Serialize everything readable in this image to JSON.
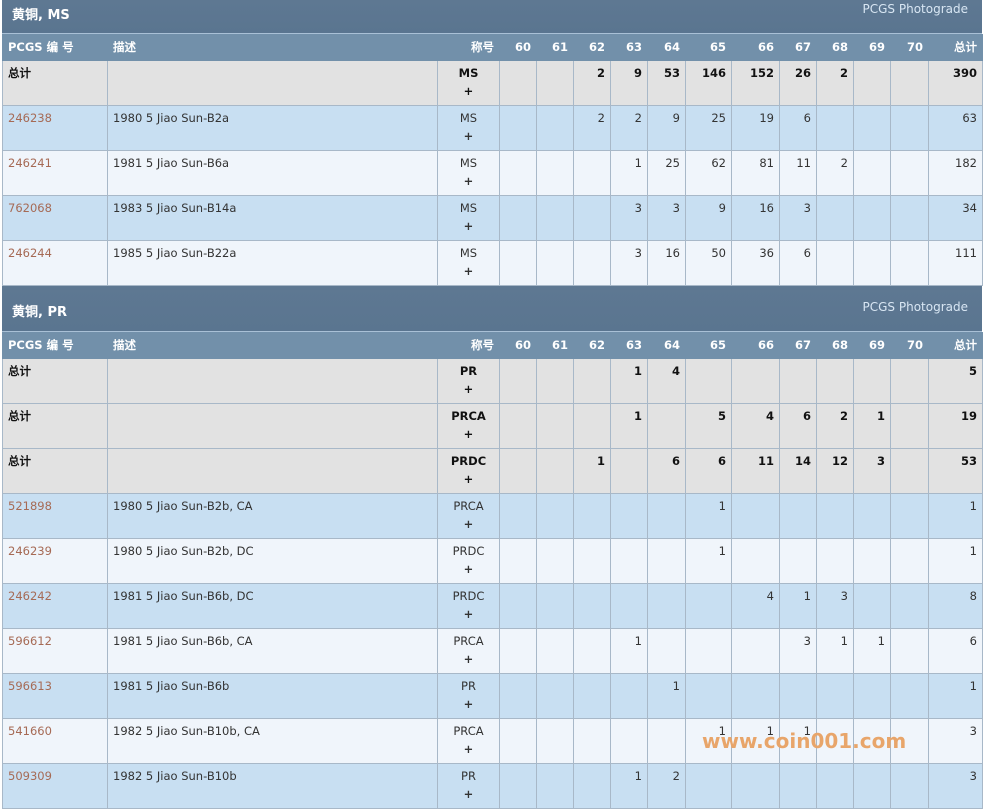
{
  "columns": {
    "pcgs": "PCGS 编 号",
    "desc": "描述",
    "designation": "称号",
    "grades": [
      "60",
      "61",
      "62",
      "63",
      "64",
      "65",
      "66",
      "67",
      "68",
      "69",
      "70"
    ],
    "total": "总计"
  },
  "plus": "+",
  "sections": [
    {
      "title": "黄铜, MS",
      "photograde": "PCGS Photograde",
      "rows": [
        {
          "type": "total",
          "pcgs": "总计",
          "desc": "",
          "designation": "MS",
          "counts": [
            null,
            null,
            2,
            9,
            53,
            146,
            152,
            26,
            2,
            null,
            null
          ],
          "total": "390"
        },
        {
          "type": "item",
          "pcgs": "246238",
          "desc": "1980 5 Jiao Sun-B2a",
          "designation": "MS",
          "counts": [
            null,
            null,
            2,
            2,
            9,
            25,
            19,
            6,
            null,
            null,
            null
          ],
          "total": "63"
        },
        {
          "type": "item",
          "pcgs": "246241",
          "desc": "1981 5 Jiao Sun-B6a",
          "designation": "MS",
          "counts": [
            null,
            null,
            null,
            1,
            25,
            62,
            81,
            11,
            2,
            null,
            null
          ],
          "total": "182"
        },
        {
          "type": "item",
          "pcgs": "762068",
          "desc": "1983 5 Jiao Sun-B14a",
          "designation": "MS",
          "counts": [
            null,
            null,
            null,
            3,
            3,
            9,
            16,
            3,
            null,
            null,
            null
          ],
          "total": "34"
        },
        {
          "type": "item",
          "pcgs": "246244",
          "desc": "1985 5 Jiao Sun-B22a",
          "designation": "MS",
          "counts": [
            null,
            null,
            null,
            3,
            16,
            50,
            36,
            6,
            null,
            null,
            null
          ],
          "total": "111"
        }
      ]
    },
    {
      "title": "黄铜, PR",
      "photograde": "PCGS Photograde",
      "rows": [
        {
          "type": "total",
          "pcgs": "总计",
          "desc": "",
          "designation": "PR",
          "counts": [
            null,
            null,
            null,
            1,
            4,
            null,
            null,
            null,
            null,
            null,
            null
          ],
          "total": "5"
        },
        {
          "type": "total",
          "pcgs": "总计",
          "desc": "",
          "designation": "PRCA",
          "counts": [
            null,
            null,
            null,
            1,
            null,
            5,
            4,
            6,
            2,
            1,
            null
          ],
          "total": "19"
        },
        {
          "type": "total",
          "pcgs": "总计",
          "desc": "",
          "designation": "PRDC",
          "counts": [
            null,
            null,
            1,
            null,
            6,
            6,
            11,
            14,
            12,
            3,
            null
          ],
          "total": "53"
        },
        {
          "type": "item",
          "pcgs": "521898",
          "desc": "1980 5 Jiao Sun-B2b, CA",
          "designation": "PRCA",
          "counts": [
            null,
            null,
            null,
            null,
            null,
            1,
            null,
            null,
            null,
            null,
            null
          ],
          "total": "1"
        },
        {
          "type": "item",
          "pcgs": "246239",
          "desc": "1980 5 Jiao Sun-B2b, DC",
          "designation": "PRDC",
          "counts": [
            null,
            null,
            null,
            null,
            null,
            1,
            null,
            null,
            null,
            null,
            null
          ],
          "total": "1"
        },
        {
          "type": "item",
          "pcgs": "246242",
          "desc": "1981 5 Jiao Sun-B6b, DC",
          "designation": "PRDC",
          "counts": [
            null,
            null,
            null,
            null,
            null,
            null,
            4,
            1,
            3,
            null,
            null
          ],
          "total": "8"
        },
        {
          "type": "item",
          "pcgs": "596612",
          "desc": "1981 5 Jiao Sun-B6b, CA",
          "designation": "PRCA",
          "counts": [
            null,
            null,
            null,
            1,
            null,
            null,
            null,
            3,
            1,
            1,
            null
          ],
          "total": "6"
        },
        {
          "type": "item",
          "pcgs": "596613",
          "desc": "1981 5 Jiao Sun-B6b",
          "designation": "PR",
          "counts": [
            null,
            null,
            null,
            null,
            1,
            null,
            null,
            null,
            null,
            null,
            null
          ],
          "total": "1"
        },
        {
          "type": "item",
          "pcgs": "541660",
          "desc": "1982 5 Jiao Sun-B10b, CA",
          "designation": "PRCA",
          "counts": [
            null,
            null,
            null,
            null,
            null,
            1,
            1,
            1,
            null,
            null,
            null
          ],
          "total": "3"
        },
        {
          "type": "item",
          "pcgs": "509309",
          "desc": "1982 5 Jiao Sun-B10b",
          "designation": "PR",
          "counts": [
            null,
            null,
            null,
            1,
            2,
            null,
            null,
            null,
            null,
            null,
            null
          ],
          "total": "3"
        }
      ]
    }
  ],
  "watermark": "www.coin001.com"
}
